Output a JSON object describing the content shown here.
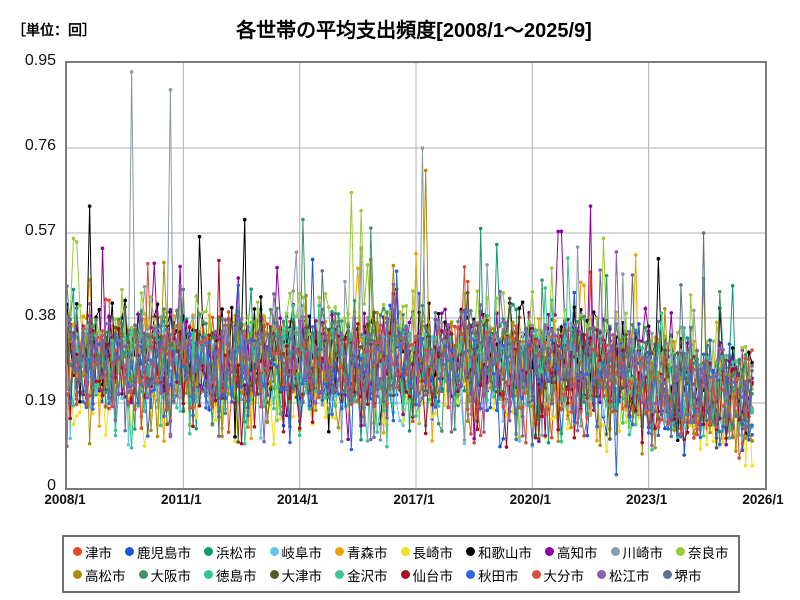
{
  "chart": {
    "title": "各世帯の平均支出頻度[2008/1～2025/9]",
    "unit_label": "［単位：回］"
  },
  "chart_data": {
    "type": "line",
    "title": "各世帯の平均支出頻度[2008/1～2025/9]",
    "unit": "回",
    "x_start": "2008/1",
    "x_data_end": "2025/9",
    "x_axis_end": "2026/1",
    "x_interval": "monthly",
    "n_points": 213,
    "ylim": [
      0,
      0.95
    ],
    "yticks": [
      0,
      0.19,
      0.38,
      0.57,
      0.76,
      0.95
    ],
    "ytick_labels": [
      "0",
      "0.19",
      "0.38",
      "0.57",
      "0.76",
      "0.95"
    ],
    "xtick_labels": [
      "2008/1",
      "2011/1",
      "2014/1",
      "2017/1",
      "2020/1",
      "2023/1",
      "2026/1"
    ],
    "xtick_month_offsets": [
      0,
      36,
      72,
      108,
      144,
      180,
      216
    ],
    "months_total": 216,
    "grid": true,
    "grid_color": "#b0b0b0",
    "plot_border_color": "#7a7a7a",
    "legend_position": "bottom",
    "legend_rows": 2,
    "legend_items_per_row": 10,
    "marker_radius": 1.8,
    "line_width": 1,
    "pivot_month": 148,
    "value_note": "20 overlapping monthly noise series, typical range 0.05-0.55 declining slightly after 2020; individual points indistinguishable, reconstructed from seeded parameters plus the readable extreme spikes listed per series",
    "series": [
      {
        "name": "津市",
        "color": "#E8491E",
        "seed": 101,
        "base_start": 0.29,
        "base_end": 0.2,
        "noise": 0.095,
        "spike_prob": 0.05,
        "spike_amp": 0.2,
        "spikes": []
      },
      {
        "name": "鹿児島市",
        "color": "#1857E0",
        "seed": 102,
        "base_start": 0.26,
        "base_end": 0.17,
        "noise": 0.09,
        "spike_prob": 0.05,
        "spike_amp": 0.2,
        "spikes": []
      },
      {
        "name": "浜松市",
        "color": "#0F9B72",
        "seed": 103,
        "base_start": 0.3,
        "base_end": 0.21,
        "noise": 0.1,
        "spike_prob": 0.05,
        "spike_amp": 0.2,
        "spikes": [
          [
            128,
            0.58
          ]
        ]
      },
      {
        "name": "岐阜市",
        "color": "#63C5F2",
        "seed": 104,
        "base_start": 0.27,
        "base_end": 0.19,
        "noise": 0.09,
        "spike_prob": 0.05,
        "spike_amp": 0.2,
        "spikes": []
      },
      {
        "name": "青森市",
        "color": "#F0A202",
        "seed": 105,
        "base_start": 0.3,
        "base_end": 0.22,
        "noise": 0.095,
        "spike_prob": 0.05,
        "spike_amp": 0.2,
        "spikes": []
      },
      {
        "name": "長崎市",
        "color": "#F0E01E",
        "seed": 106,
        "base_start": 0.23,
        "base_end": 0.14,
        "noise": 0.09,
        "spike_prob": 0.04,
        "spike_amp": 0.18,
        "spikes": []
      },
      {
        "name": "和歌山市",
        "color": "#000000",
        "seed": 107,
        "base_start": 0.32,
        "base_end": 0.21,
        "noise": 0.1,
        "spike_prob": 0.06,
        "spike_amp": 0.22,
        "spikes": [
          [
            7,
            0.63
          ],
          [
            55,
            0.6
          ]
        ]
      },
      {
        "name": "高知市",
        "color": "#90009E",
        "seed": 108,
        "base_start": 0.3,
        "base_end": 0.22,
        "noise": 0.1,
        "spike_prob": 0.06,
        "spike_amp": 0.22,
        "spikes": [
          [
            162,
            0.63
          ]
        ]
      },
      {
        "name": "川崎市",
        "color": "#8C99A6",
        "seed": 109,
        "base_start": 0.29,
        "base_end": 0.21,
        "noise": 0.1,
        "spike_prob": 0.06,
        "spike_amp": 0.22,
        "spikes": [
          [
            20,
            0.93
          ],
          [
            32,
            0.89
          ],
          [
            110,
            0.76
          ]
        ]
      },
      {
        "name": "奈良市",
        "color": "#97CB3B",
        "seed": 110,
        "base_start": 0.33,
        "base_end": 0.21,
        "noise": 0.11,
        "spike_prob": 0.07,
        "spike_amp": 0.22,
        "spikes": [
          [
            88,
            0.66
          ],
          [
            91,
            0.62
          ],
          [
            3,
            0.55
          ]
        ]
      },
      {
        "name": "高松市",
        "color": "#AD8E0B",
        "seed": 111,
        "base_start": 0.28,
        "base_end": 0.19,
        "noise": 0.095,
        "spike_prob": 0.05,
        "spike_amp": 0.2,
        "spikes": [
          [
            111,
            0.71
          ]
        ]
      },
      {
        "name": "大阪市",
        "color": "#3E9468",
        "seed": 112,
        "base_start": 0.31,
        "base_end": 0.22,
        "noise": 0.1,
        "spike_prob": 0.06,
        "spike_amp": 0.2,
        "spikes": [
          [
            73,
            0.6
          ]
        ]
      },
      {
        "name": "徳島市",
        "color": "#2EC98A",
        "seed": 113,
        "base_start": 0.26,
        "base_end": 0.18,
        "noise": 0.095,
        "spike_prob": 0.05,
        "spike_amp": 0.18,
        "spikes": []
      },
      {
        "name": "大津市",
        "color": "#565A2B",
        "seed": 114,
        "base_start": 0.29,
        "base_end": 0.2,
        "noise": 0.09,
        "spike_prob": 0.05,
        "spike_amp": 0.18,
        "spikes": []
      },
      {
        "name": "金沢市",
        "color": "#3FC594",
        "seed": 115,
        "base_start": 0.27,
        "base_end": 0.19,
        "noise": 0.095,
        "spike_prob": 0.05,
        "spike_amp": 0.18,
        "spikes": []
      },
      {
        "name": "仙台市",
        "color": "#A50F22",
        "seed": 116,
        "base_start": 0.27,
        "base_end": 0.18,
        "noise": 0.09,
        "spike_prob": 0.05,
        "spike_amp": 0.2,
        "spikes": []
      },
      {
        "name": "秋田市",
        "color": "#2D68D8",
        "seed": 117,
        "base_start": 0.25,
        "base_end": 0.16,
        "noise": 0.09,
        "spike_prob": 0.05,
        "spike_amp": 0.2,
        "spikes": [
          [
            170,
            0.03
          ]
        ]
      },
      {
        "name": "大分市",
        "color": "#D2523F",
        "seed": 118,
        "base_start": 0.27,
        "base_end": 0.18,
        "noise": 0.095,
        "spike_prob": 0.05,
        "spike_amp": 0.2,
        "spikes": []
      },
      {
        "name": "松江市",
        "color": "#8A5FAF",
        "seed": 119,
        "base_start": 0.29,
        "base_end": 0.21,
        "noise": 0.09,
        "spike_prob": 0.05,
        "spike_amp": 0.2,
        "spikes": []
      },
      {
        "name": "堺市",
        "color": "#5E7290",
        "seed": 120,
        "base_start": 0.28,
        "base_end": 0.2,
        "noise": 0.09,
        "spike_prob": 0.05,
        "spike_amp": 0.2,
        "spikes": [
          [
            197,
            0.57
          ]
        ]
      }
    ]
  }
}
